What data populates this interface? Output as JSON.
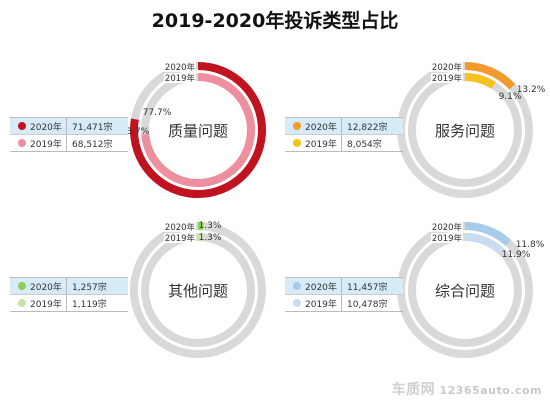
{
  "title": "2019-2020年投诉类型占比",
  "watermark": {
    "brand": "车质网",
    "site": "12365auto.com"
  },
  "chart_data": [
    {
      "type": "pie",
      "name": "质量问题",
      "series": [
        {
          "name": "2020年",
          "count": "71,471宗",
          "percent": 77.7,
          "label": "77.7%",
          "color": "#c0121f"
        },
        {
          "name": "2019年",
          "count": "68,512宗",
          "percent": 73.7,
          "label": "73.7%",
          "color": "#ee8f9f"
        }
      ]
    },
    {
      "type": "pie",
      "name": "服务问题",
      "series": [
        {
          "name": "2020年",
          "count": "12,822宗",
          "percent": 13.2,
          "label": "13.2%",
          "color": "#f29a2c"
        },
        {
          "name": "2019年",
          "count": "8,054宗",
          "percent": 9.1,
          "label": "9.1%",
          "color": "#f7c21f"
        }
      ]
    },
    {
      "type": "pie",
      "name": "其他问题",
      "series": [
        {
          "name": "2020年",
          "count": "1,257宗",
          "percent": 1.3,
          "label": "1.3%",
          "color": "#8fd05a"
        },
        {
          "name": "2019年",
          "count": "1,119宗",
          "percent": 1.3,
          "label": "1.3%",
          "color": "#c4e5a7"
        }
      ]
    },
    {
      "type": "pie",
      "name": "综合问题",
      "series": [
        {
          "name": "2020年",
          "count": "11,457宗",
          "percent": 11.8,
          "label": "11.8%",
          "color": "#a9cbea"
        },
        {
          "name": "2019年",
          "count": "10,478宗",
          "percent": 11.9,
          "label": "11.9%",
          "color": "#c8ddf2"
        }
      ]
    }
  ],
  "colors": {
    "track": "#d9d9d9",
    "text": "#333333"
  }
}
